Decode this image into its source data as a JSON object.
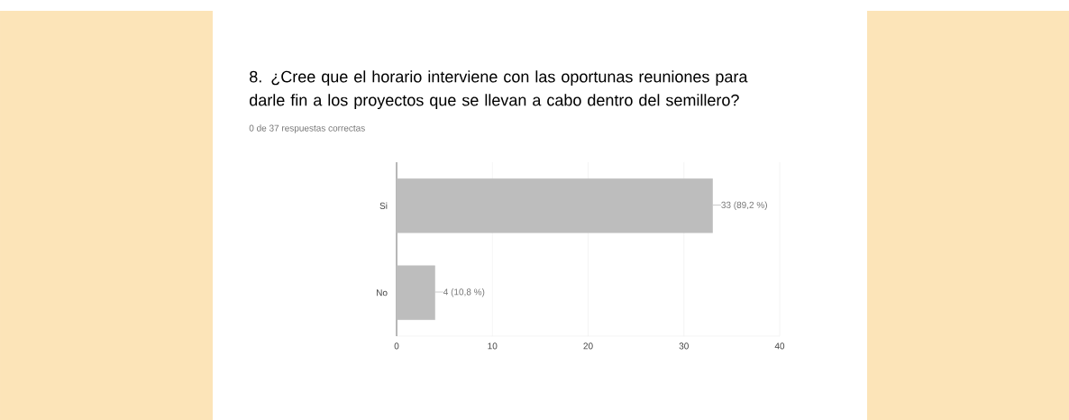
{
  "chart_data": {
    "type": "bar",
    "orientation": "horizontal",
    "title": "8. ¿Cree que el horario interviene con las oportunas reuniones para darle fin a los proyectos que se llevan a cabo dentro del semillero?",
    "subtitle": "0 de 37 respuestas correctas",
    "categories": [
      "Si",
      "No"
    ],
    "values": [
      33,
      4
    ],
    "value_labels": [
      "33 (89,2 %)",
      "4 (10,8 %)"
    ],
    "color": "#bdbdbd",
    "xlim": [
      0,
      40
    ],
    "xticks": [
      0,
      10,
      20,
      30,
      40
    ],
    "grid": "x"
  }
}
